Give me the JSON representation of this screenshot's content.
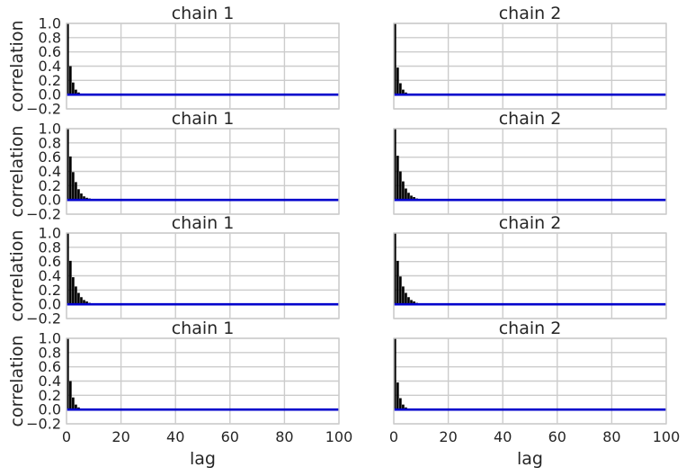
{
  "chart_data": {
    "type": "bar",
    "grid": true,
    "layout": {
      "rows": 4,
      "cols": 2,
      "sharex": true,
      "sharey": true
    },
    "xlabel": "lag",
    "ylabel": "correlation",
    "xlim": [
      0,
      100
    ],
    "ylim": [
      -0.2,
      1.0
    ],
    "xticks": [
      0,
      20,
      40,
      60,
      80,
      100
    ],
    "xtick_labels": [
      "0",
      "20",
      "40",
      "60",
      "80",
      "100"
    ],
    "yticks": [
      -0.2,
      0.0,
      0.2,
      0.4,
      0.6,
      0.8,
      1.0
    ],
    "ytick_labels": [
      "−0.2",
      "0.0",
      "0.2",
      "0.4",
      "0.6",
      "0.8",
      "1.0"
    ],
    "colors": {
      "bars": "#000000",
      "line": "#0000cc",
      "grid": "#cccccc"
    },
    "panels": [
      {
        "title": "chain 1",
        "values": [
          1.0,
          0.4,
          0.17,
          0.07,
          0.03,
          0.01,
          0.01,
          0.0
        ]
      },
      {
        "title": "chain 2",
        "values": [
          1.0,
          0.38,
          0.16,
          0.07,
          0.03,
          0.01,
          0.0,
          0.0
        ]
      },
      {
        "title": "chain 1",
        "values": [
          1.0,
          0.61,
          0.39,
          0.25,
          0.15,
          0.09,
          0.05,
          0.03,
          0.02,
          0.01,
          0.0
        ]
      },
      {
        "title": "chain 2",
        "values": [
          1.0,
          0.62,
          0.4,
          0.26,
          0.16,
          0.1,
          0.06,
          0.04,
          0.02,
          0.01,
          0.0
        ]
      },
      {
        "title": "chain 1",
        "values": [
          1.0,
          0.61,
          0.38,
          0.25,
          0.16,
          0.1,
          0.06,
          0.04,
          0.02,
          0.01,
          0.0
        ]
      },
      {
        "title": "chain 2",
        "values": [
          1.0,
          0.61,
          0.39,
          0.25,
          0.16,
          0.1,
          0.06,
          0.04,
          0.02,
          0.01,
          0.0
        ]
      },
      {
        "title": "chain 1",
        "values": [
          1.0,
          0.4,
          0.17,
          0.07,
          0.03,
          0.01,
          0.0
        ]
      },
      {
        "title": "chain 2",
        "values": [
          1.0,
          0.38,
          0.16,
          0.07,
          0.03,
          0.01,
          0.0
        ]
      }
    ]
  }
}
